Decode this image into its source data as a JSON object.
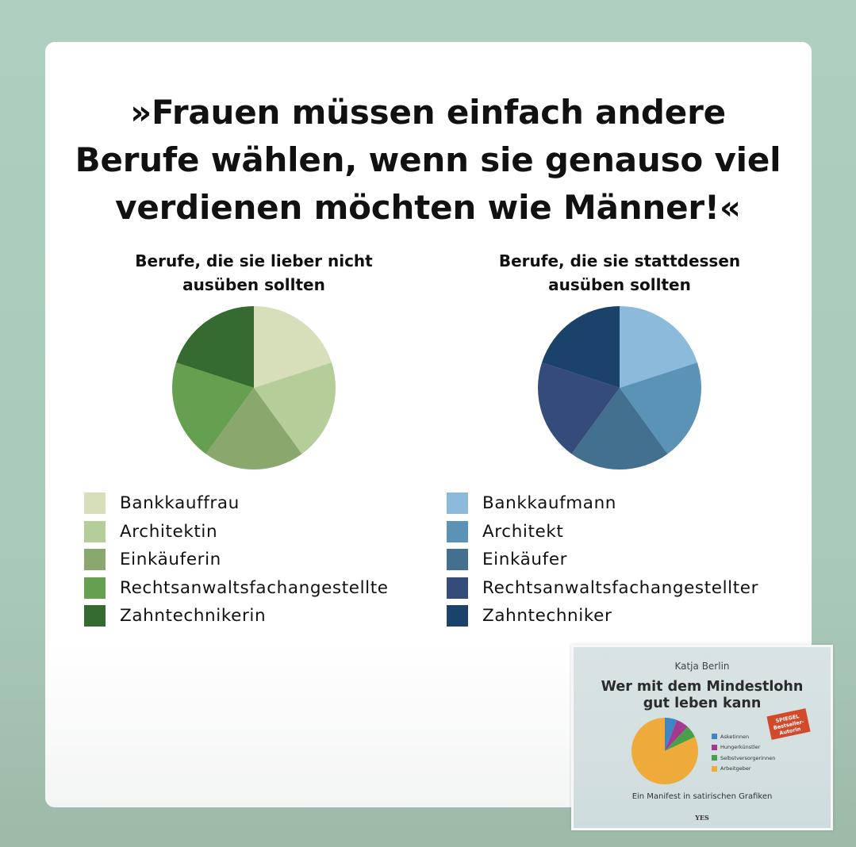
{
  "headline": {
    "line1": "»Frauen müssen einfach andere",
    "line2": "Berufe wählen, wenn sie genauso viel",
    "line3": "verdienen möchten wie Männer!«"
  },
  "chart_data": [
    {
      "type": "pie",
      "title_line1": "Berufe, die sie lieber nicht",
      "title_line2": "ausüben sollten",
      "categories": [
        "Bankkauffrau",
        "Architektin",
        "Einkäuferin",
        "Rechtsanwaltsfachangestellte",
        "Zahntechnikerin"
      ],
      "values": [
        20,
        20,
        20,
        20,
        20
      ],
      "colors": [
        "#d6dfb9",
        "#b5cd98",
        "#8aa86e",
        "#65a050",
        "#356a31"
      ],
      "legend_position": "bottom"
    },
    {
      "type": "pie",
      "title_line1": "Berufe, die sie stattdessen",
      "title_line2": "ausüben sollten",
      "categories": [
        "Bankkaufmann",
        "Architekt",
        "Einkäufer",
        "Rechtsanwaltsfachangestellter",
        "Zahntechniker"
      ],
      "values": [
        20,
        20,
        20,
        20,
        20
      ],
      "colors": [
        "#8bbadb",
        "#5b93b7",
        "#43708f",
        "#354b7a",
        "#1b426a"
      ],
      "legend_position": "bottom"
    }
  ],
  "book": {
    "author": "Katja Berlin",
    "title_line1": "Wer mit dem Mindestlohn",
    "title_line2": "gut leben kann",
    "badge_line1": "SPIEGEL",
    "badge_line2": "Bestseller-",
    "badge_line3": "Autorin",
    "subtitle": "Ein Manifest in satirischen Grafiken",
    "publisher": "YES",
    "pie_legend": [
      "Asketinnen",
      "Hungerkünstler",
      "Selbstversorgerinnen",
      "Arbeitgeber"
    ],
    "pie_values": [
      6,
      6,
      6,
      82
    ],
    "pie_colors": [
      "#3e86c4",
      "#a23b8f",
      "#4aa04a",
      "#efab3a"
    ]
  }
}
